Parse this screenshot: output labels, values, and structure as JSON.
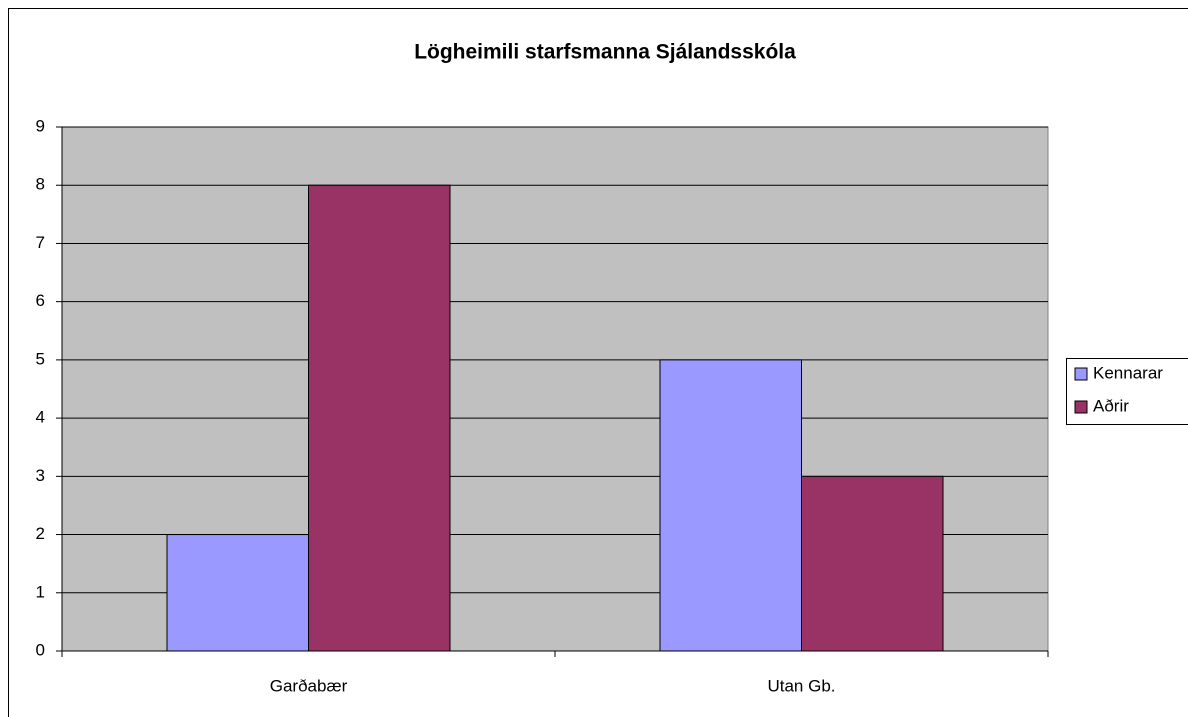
{
  "chart_data": {
    "type": "bar",
    "title": "Lögheimili starfsmanna Sjálandsskóla",
    "categories": [
      "Garðabær",
      "Utan Gb."
    ],
    "series": [
      {
        "name": "Kennarar",
        "color": "#9999ff",
        "values": [
          2,
          5
        ]
      },
      {
        "name": "Aðrir",
        "color": "#993366",
        "values": [
          8,
          3
        ]
      }
    ],
    "ylim": [
      0,
      9
    ],
    "yticks": [
      0,
      1,
      2,
      3,
      4,
      5,
      6,
      7,
      8,
      9
    ],
    "grid": true,
    "legend": "right"
  }
}
